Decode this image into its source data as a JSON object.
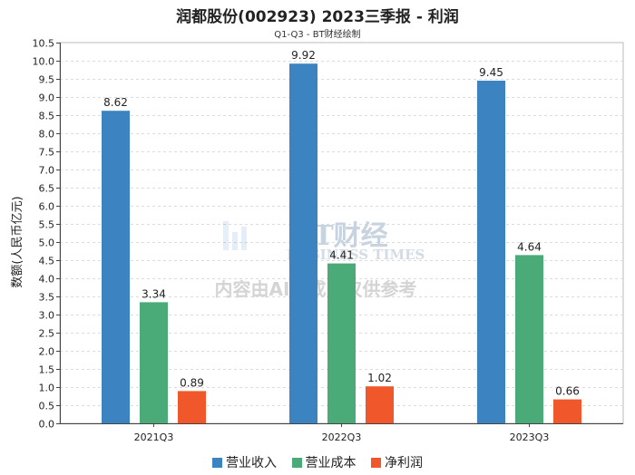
{
  "chart_data": {
    "type": "bar",
    "title": "润都股份(002923) 2023三季报 - 利润",
    "subtitle": "Q1-Q3 - BT财经绘制",
    "categories": [
      "2021Q3",
      "2022Q3",
      "2023Q3"
    ],
    "series": [
      {
        "name": "营业收入",
        "color": "#3b83c1",
        "values": [
          8.62,
          9.92,
          9.45
        ]
      },
      {
        "name": "营业成本",
        "color": "#4aab78",
        "values": [
          3.34,
          4.41,
          4.64
        ]
      },
      {
        "name": "净利润",
        "color": "#f0572a",
        "values": [
          0.89,
          1.02,
          0.66
        ]
      }
    ],
    "ylabel": "数额(人民币亿元)",
    "xlabel": "",
    "ylim": [
      0,
      10.5
    ],
    "ytick_step": 0.5,
    "grid": true,
    "legend_position": "bottom-center"
  },
  "watermark": {
    "brand": "BT财经",
    "brand_en": "BUSINESS TIMES",
    "notice": "内容由AI生成，仅供参考"
  }
}
